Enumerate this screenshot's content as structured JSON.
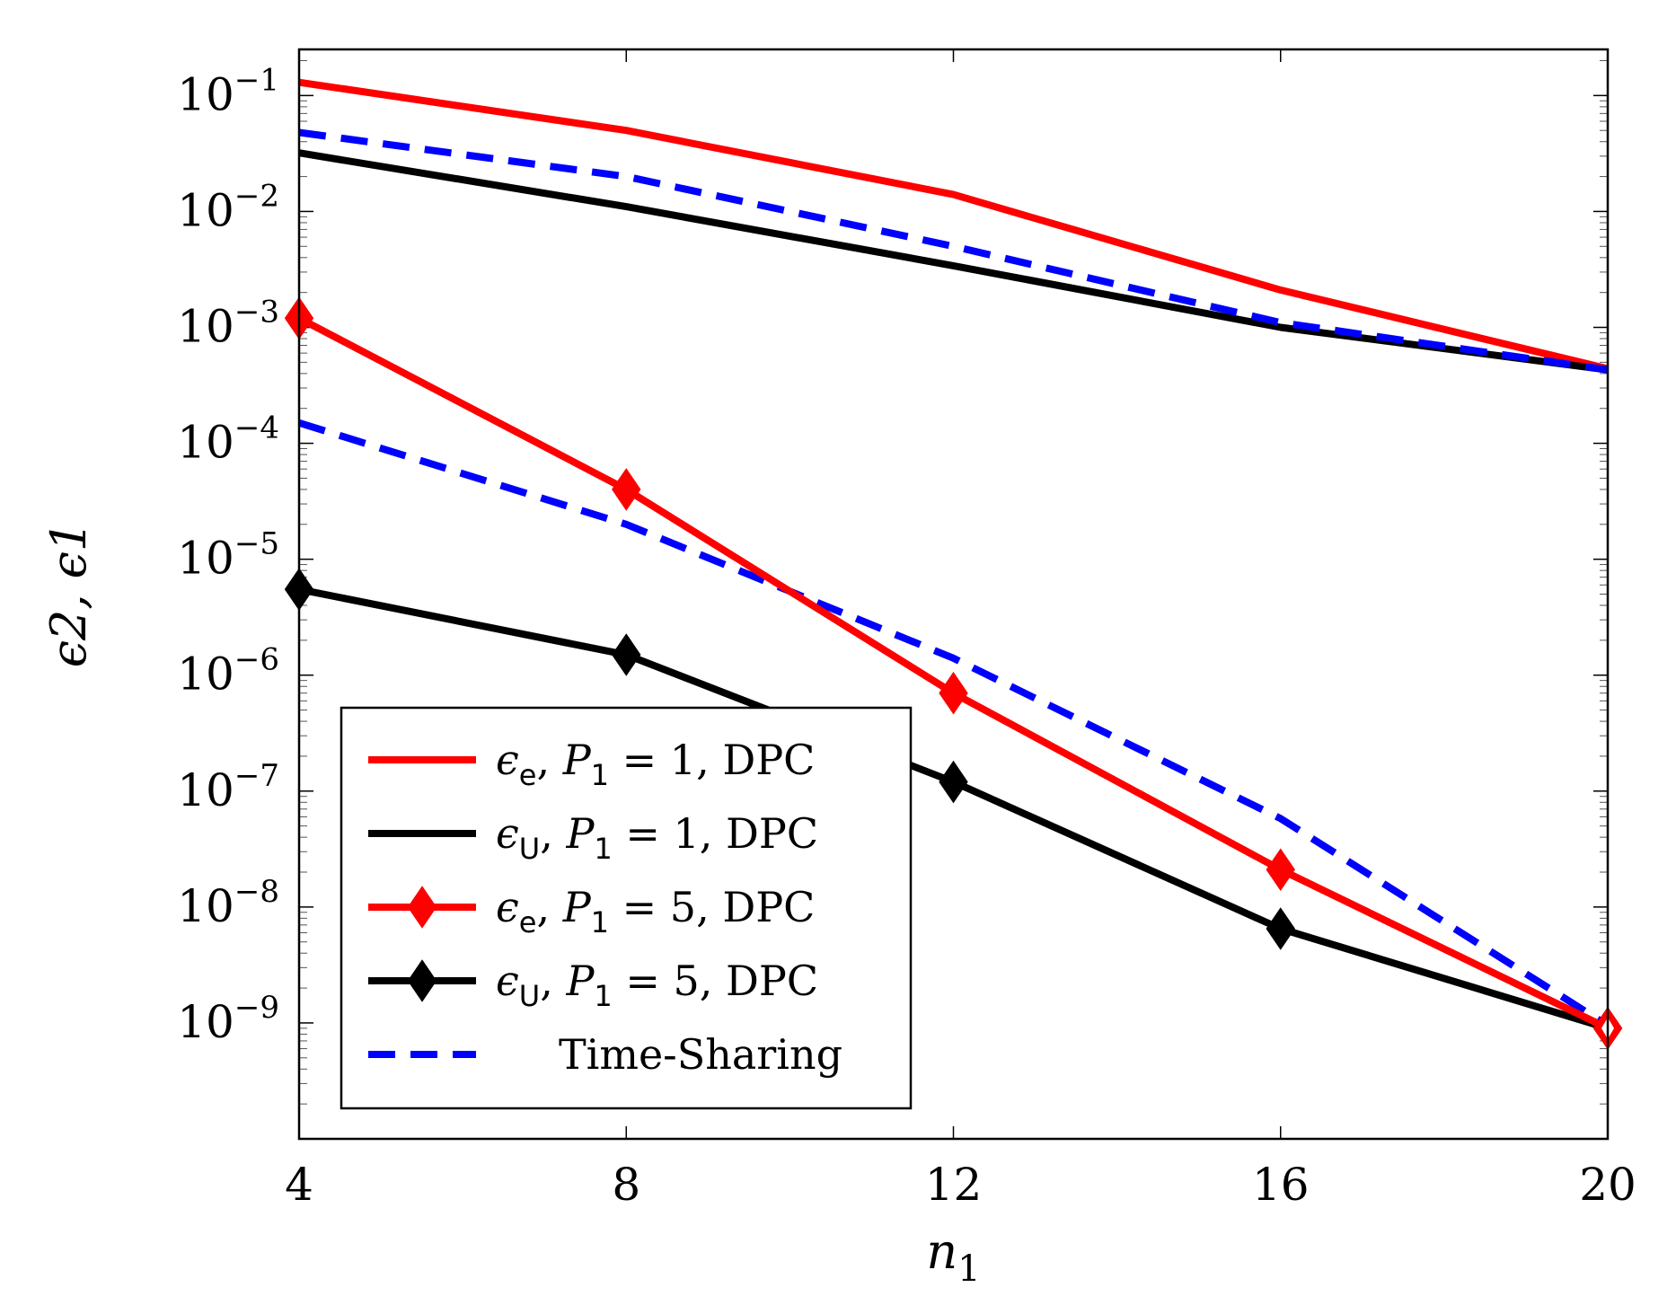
{
  "chart_data": {
    "type": "line",
    "xscale": "linear",
    "yscale": "log",
    "xlabel": "n",
    "xlabel_sub": "1",
    "ylabel": "ϵ2, ϵ1",
    "xlim": [
      4,
      20
    ],
    "ylim": [
      1e-10,
      0.25
    ],
    "x_ticks": [
      4,
      8,
      12,
      16,
      20
    ],
    "y_ticks": [
      {
        "value": 0.1,
        "base": "10",
        "exp": "−1"
      },
      {
        "value": 0.01,
        "base": "10",
        "exp": "−2"
      },
      {
        "value": 0.001,
        "base": "10",
        "exp": "−3"
      },
      {
        "value": 0.0001,
        "base": "10",
        "exp": "−4"
      },
      {
        "value": 1e-05,
        "base": "10",
        "exp": "−5"
      },
      {
        "value": 1e-06,
        "base": "10",
        "exp": "−6"
      },
      {
        "value": 1e-07,
        "base": "10",
        "exp": "−7"
      },
      {
        "value": 1e-08,
        "base": "10",
        "exp": "−8"
      },
      {
        "value": 1e-09,
        "base": "10",
        "exp": "−9"
      }
    ],
    "legend_position": "bottom-left",
    "x": [
      4,
      8,
      12,
      16,
      20
    ],
    "series": [
      {
        "name": "ϵe, P1 = 1, DPC",
        "eps_sub": "e",
        "power": "1",
        "scheme": "DPC",
        "color": "#ff0000",
        "style": "solid",
        "marker": "none",
        "values": [
          0.13,
          0.05,
          0.014,
          0.0021,
          0.00044
        ]
      },
      {
        "name": "ϵU, P1 = 1, DPC",
        "eps_sub": "U",
        "power": "1",
        "scheme": "DPC",
        "color": "#000000",
        "style": "solid",
        "marker": "none",
        "values": [
          0.032,
          0.011,
          0.0034,
          0.001,
          0.00043
        ]
      },
      {
        "name": "ϵe, P1 = 5, DPC",
        "eps_sub": "e",
        "power": "5",
        "scheme": "DPC",
        "color": "#ff0000",
        "style": "solid",
        "marker": "diamond",
        "values": [
          0.0012,
          4e-05,
          7e-07,
          2.1e-08,
          9e-10
        ]
      },
      {
        "name": "ϵU, P1 = 5, DPC",
        "eps_sub": "U",
        "power": "5",
        "scheme": "DPC",
        "color": "#000000",
        "style": "solid",
        "marker": "diamond",
        "values": [
          5.5e-06,
          1.5e-06,
          1.2e-07,
          6.5e-09,
          9e-10
        ]
      },
      {
        "name": "Time-Sharing",
        "color": "#0000ff",
        "style": "dashed",
        "marker": "none",
        "sets": [
          [
            0.048,
            0.02,
            0.005,
            0.0011,
            0.00043
          ],
          [
            0.00015,
            2e-05,
            1.4e-06,
            5.8e-08,
            9.5e-10
          ]
        ]
      }
    ]
  }
}
